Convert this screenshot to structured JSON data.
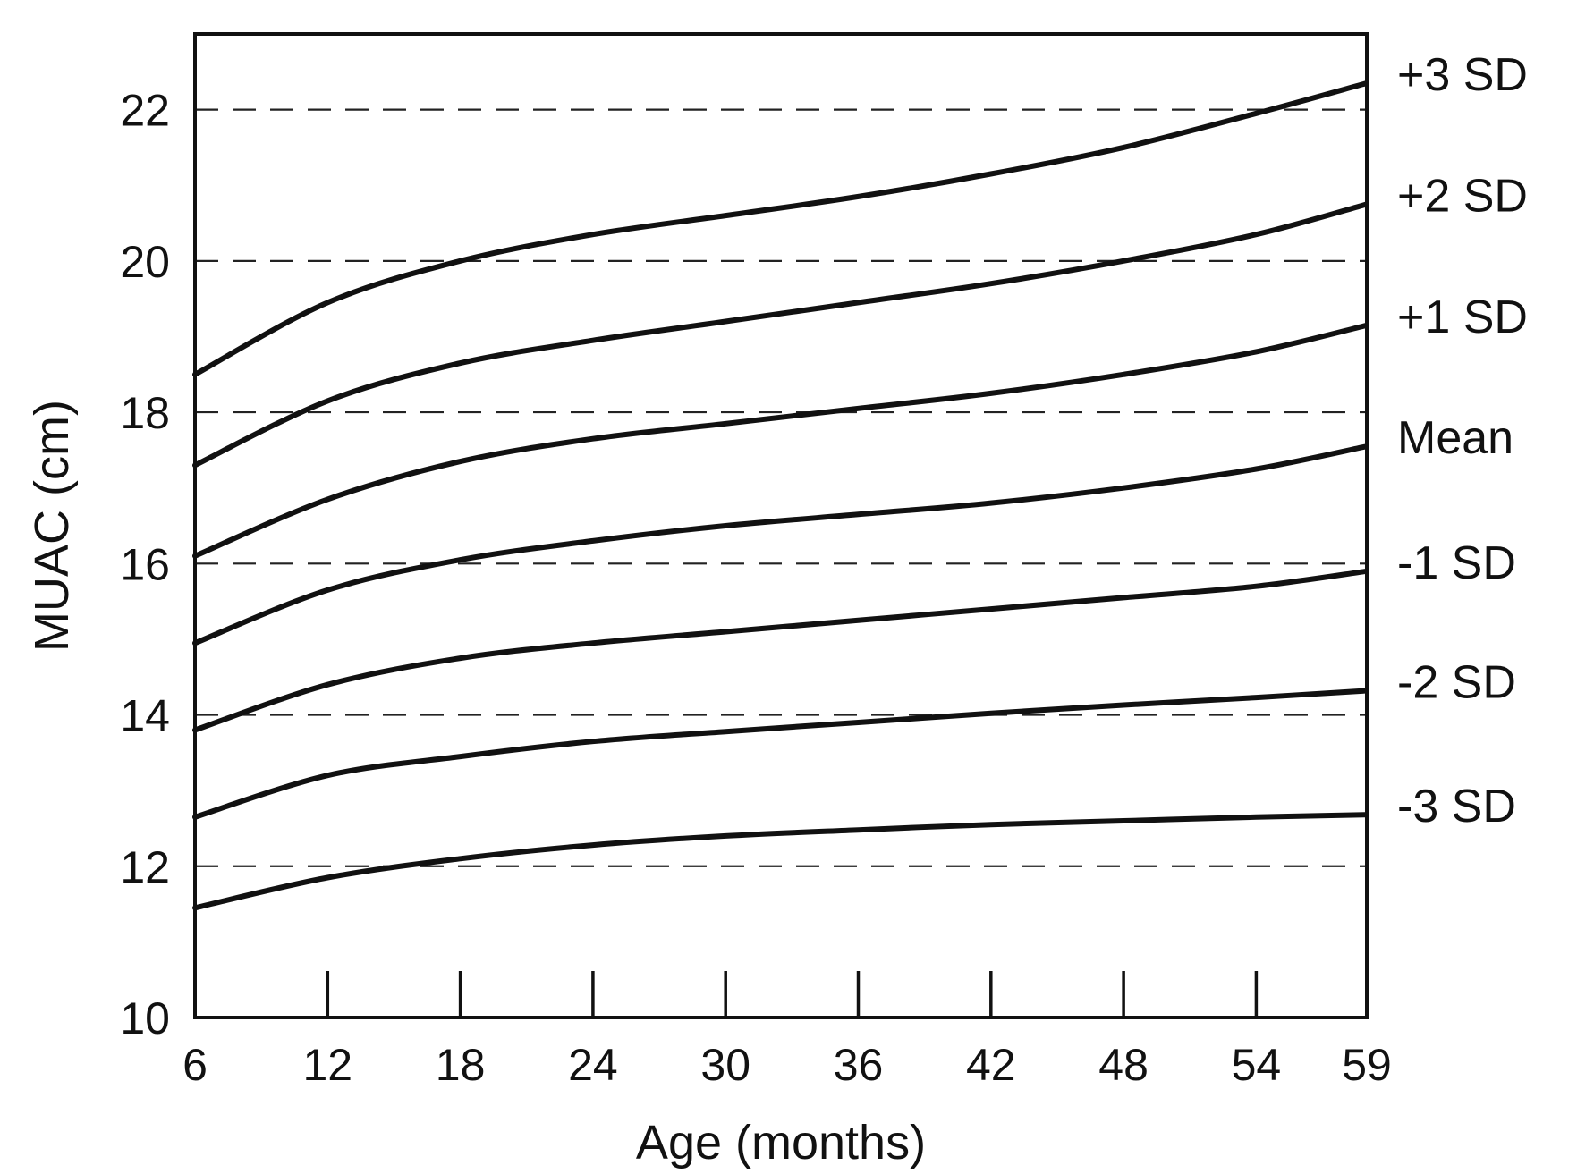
{
  "chart_data": {
    "type": "line",
    "title": "",
    "xlabel": "Age (months)",
    "ylabel": "MUAC (cm)",
    "xlim": [
      6,
      59
    ],
    "ylim": [
      10,
      23
    ],
    "x_ticks": [
      6,
      12,
      18,
      24,
      30,
      36,
      42,
      48,
      54,
      59
    ],
    "y_ticks": [
      10,
      12,
      14,
      16,
      18,
      20,
      22
    ],
    "gridlines": "dashed horizontal at 12, 14, 16, 18, 20, 22",
    "legend_position": "right (labels beside line ends)",
    "x": [
      6,
      12,
      18,
      24,
      30,
      36,
      42,
      48,
      54,
      59
    ],
    "series": [
      {
        "name": "+3 SD",
        "values": [
          18.5,
          19.45,
          20.0,
          20.35,
          20.6,
          20.85,
          21.15,
          21.5,
          21.95,
          22.35
        ]
      },
      {
        "name": "+2 SD",
        "values": [
          17.3,
          18.15,
          18.65,
          18.95,
          19.2,
          19.45,
          19.7,
          20.0,
          20.35,
          20.75
        ]
      },
      {
        "name": "+1 SD",
        "values": [
          16.1,
          16.85,
          17.35,
          17.65,
          17.85,
          18.05,
          18.25,
          18.5,
          18.8,
          19.15
        ]
      },
      {
        "name": "Mean",
        "values": [
          14.95,
          15.65,
          16.05,
          16.3,
          16.5,
          16.65,
          16.8,
          17.0,
          17.25,
          17.55
        ]
      },
      {
        "name": "-1 SD",
        "values": [
          13.8,
          14.4,
          14.75,
          14.95,
          15.1,
          15.25,
          15.4,
          15.55,
          15.7,
          15.9
        ]
      },
      {
        "name": "-2 SD",
        "values": [
          12.65,
          13.2,
          13.45,
          13.65,
          13.78,
          13.9,
          14.02,
          14.13,
          14.23,
          14.32
        ]
      },
      {
        "name": "-3 SD",
        "values": [
          11.45,
          11.85,
          12.1,
          12.28,
          12.4,
          12.48,
          12.55,
          12.6,
          12.65,
          12.68
        ]
      }
    ]
  }
}
